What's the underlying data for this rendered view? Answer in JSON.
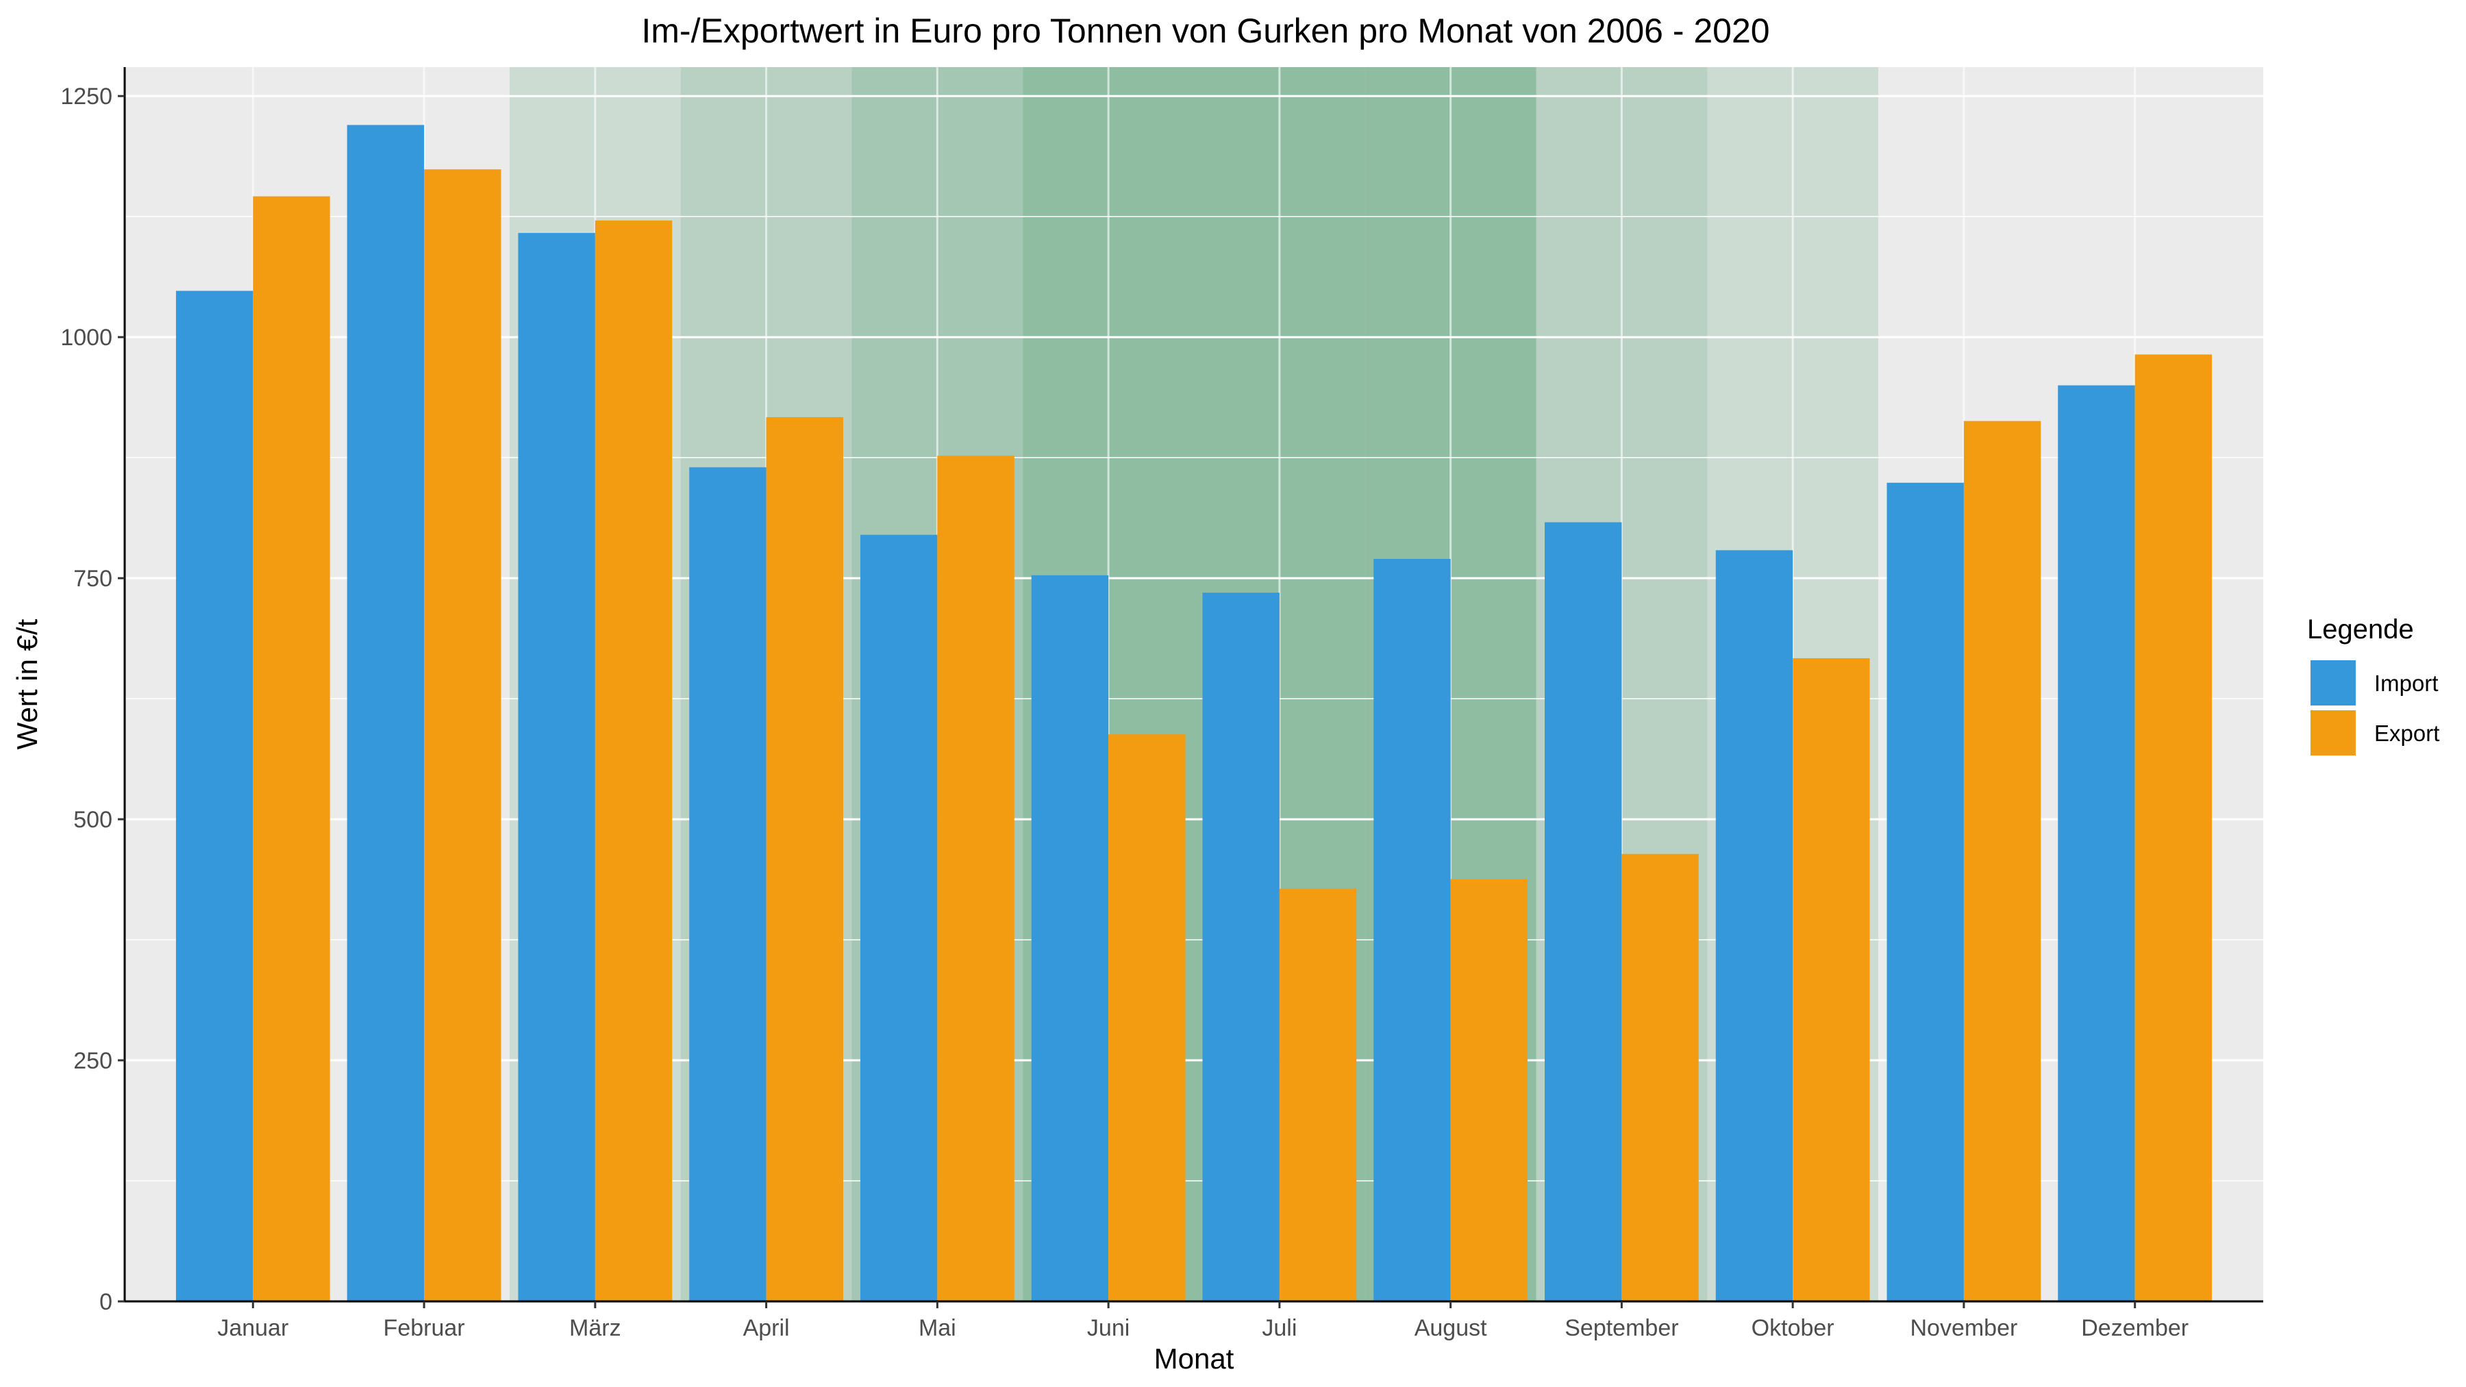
{
  "chart_data": {
    "type": "bar",
    "title": "Im-/Exportwert in Euro pro Tonnen von Gurken pro Monat von 2006 - 2020",
    "xlabel": "Monat",
    "ylabel": "Wert in €/t",
    "ylim": [
      0,
      1280
    ],
    "y_ticks": [
      0,
      250,
      500,
      750,
      1000,
      1250
    ],
    "y_tick_labels": [
      "0",
      "250",
      "500",
      "750",
      "1000",
      "1250"
    ],
    "grid": true,
    "legend": {
      "title": "Legende",
      "placement": "right"
    },
    "categories": [
      "Januar",
      "Februar",
      "März",
      "April",
      "Mai",
      "Juni",
      "Juli",
      "August",
      "September",
      "Oktober",
      "November",
      "Dezember"
    ],
    "series": [
      {
        "name": "Import",
        "color": "#3498db",
        "values": [
          1048,
          1220,
          1108,
          865,
          795,
          753,
          735,
          770,
          808,
          779,
          849,
          950
        ]
      },
      {
        "name": "Export",
        "color": "#f39c12",
        "values": [
          1146,
          1174,
          1121,
          917,
          877,
          588,
          428,
          438,
          464,
          667,
          913,
          982
        ]
      }
    ],
    "background_shading": {
      "color": "#1e8449",
      "opacity_by_month": [
        0,
        0,
        0.15,
        0.25,
        0.35,
        0.45,
        0.45,
        0.45,
        0.25,
        0.15,
        0,
        0
      ]
    },
    "panel_background": "#ebebeb",
    "grid_color": "#ffffff"
  }
}
